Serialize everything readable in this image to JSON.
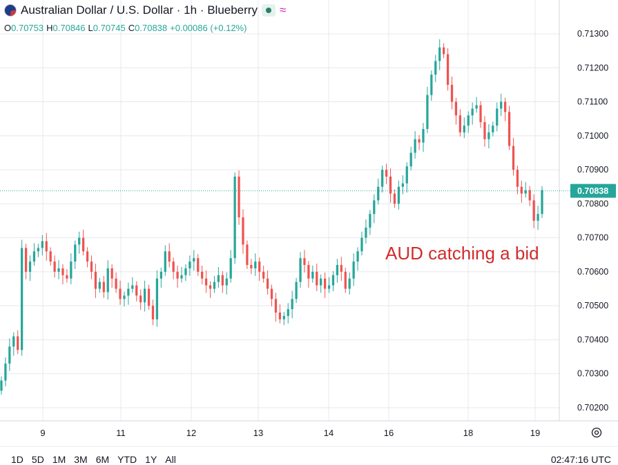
{
  "header": {
    "title": "Australian Dollar / U.S. Dollar · 1h · Blueberry",
    "wave_symbol": "≈",
    "ohlc": [
      {
        "key": "O",
        "value": "0.70753"
      },
      {
        "key": "H",
        "value": "0.70846"
      },
      {
        "key": "L",
        "value": "0.70745"
      },
      {
        "key": "C",
        "value": "0.70838"
      },
      {
        "key": "",
        "value": "+0.00086 (+0.12%)"
      }
    ]
  },
  "colors": {
    "up": "#26a69a",
    "down": "#ef5350",
    "annotation": "#d12b2b",
    "grid": "#e6e8ec"
  },
  "chart_data": {
    "type": "line",
    "title": "",
    "xlabel": "",
    "ylabel": "",
    "ylim": [
      0.7015,
      0.7136
    ],
    "y_ticks": [
      "0.71300",
      "0.71200",
      "0.71100",
      "0.71000",
      "0.70900",
      "0.70800",
      "0.70700",
      "0.70600",
      "0.70500",
      "0.70400",
      "0.70300",
      "0.70200"
    ],
    "x_ticks": [
      "9",
      "11",
      "12",
      "13",
      "14",
      "16",
      "18",
      "19"
    ],
    "grid": true,
    "legend": "none",
    "last_price": "0.70838",
    "annotation": "AUD catching a bid",
    "series": [
      {
        "values": [
          0.7028,
          0.7033,
          0.7038,
          0.7041,
          0.7037,
          0.7067,
          0.706,
          0.7063,
          0.7066,
          0.7067,
          0.7069,
          0.7066,
          0.7063,
          0.706,
          0.7061,
          0.7059,
          0.7058,
          0.7063,
          0.7068,
          0.707,
          0.7066,
          0.7063,
          0.706,
          0.7055,
          0.7057,
          0.7054,
          0.7061,
          0.7058,
          0.7055,
          0.7052,
          0.7053,
          0.7055,
          0.7056,
          0.7053,
          0.7051,
          0.7055,
          0.705,
          0.7046,
          0.7058,
          0.706,
          0.7066,
          0.7063,
          0.706,
          0.7058,
          0.7059,
          0.7061,
          0.7063,
          0.7064,
          0.706,
          0.7058,
          0.7056,
          0.7055,
          0.7057,
          0.7059,
          0.7056,
          0.7058,
          0.7064,
          0.7088,
          0.7076,
          0.7068,
          0.7062,
          0.7061,
          0.7063,
          0.706,
          0.7058,
          0.7055,
          0.7052,
          0.7048,
          0.7046,
          0.7047,
          0.7049,
          0.7052,
          0.7057,
          0.7064,
          0.7062,
          0.7058,
          0.706,
          0.7056,
          0.7058,
          0.7055,
          0.7056,
          0.7059,
          0.7062,
          0.706,
          0.7055,
          0.7058,
          0.7063,
          0.7066,
          0.707,
          0.7073,
          0.7077,
          0.7081,
          0.7085,
          0.709,
          0.7088,
          0.7083,
          0.708,
          0.7085,
          0.7086,
          0.7091,
          0.7095,
          0.7099,
          0.7098,
          0.7102,
          0.7112,
          0.7118,
          0.7122,
          0.7126,
          0.7124,
          0.7115,
          0.711,
          0.7106,
          0.7101,
          0.7103,
          0.7106,
          0.7108,
          0.7109,
          0.7104,
          0.7099,
          0.7101,
          0.7103,
          0.7108,
          0.711,
          0.7107,
          0.7097,
          0.709,
          0.7085,
          0.7083,
          0.7084,
          0.7081,
          0.7075,
          0.7077,
          0.7084
        ]
      }
    ]
  },
  "footer": {
    "ranges": [
      "1D",
      "5D",
      "1M",
      "3M",
      "6M",
      "YTD",
      "1Y",
      "All"
    ],
    "clock": "02:47:16 UTC"
  }
}
